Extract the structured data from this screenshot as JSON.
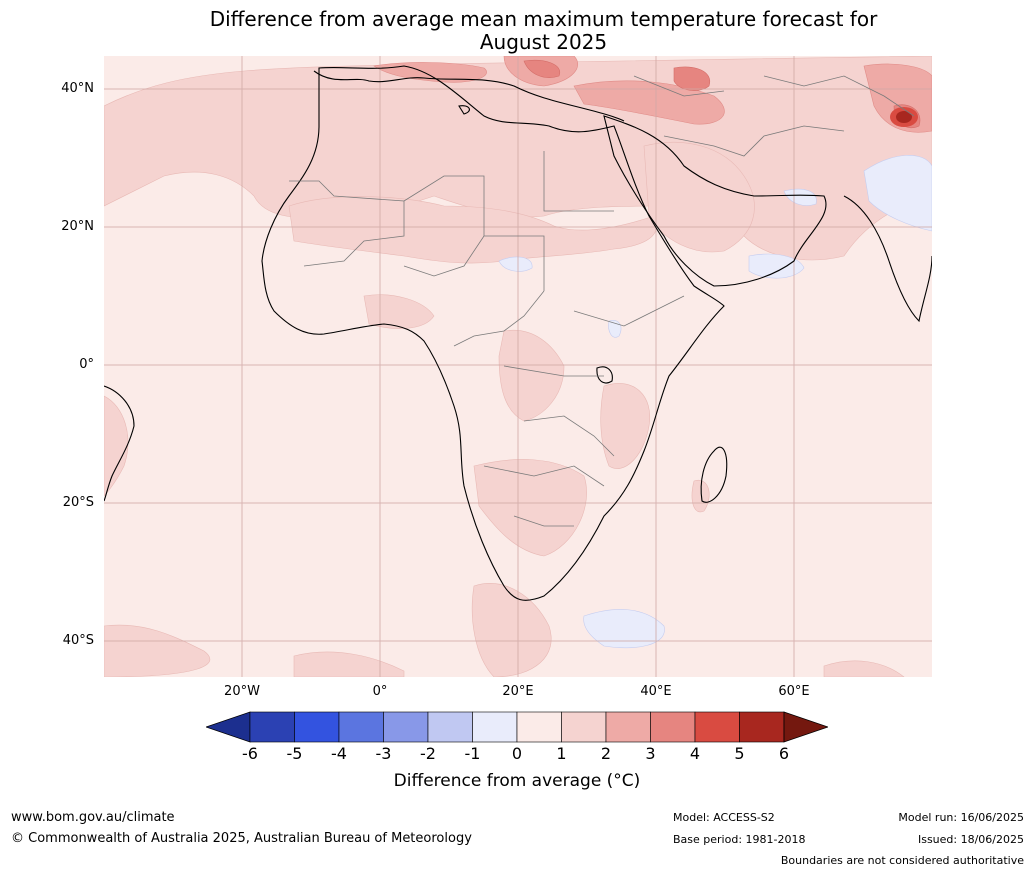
{
  "title": {
    "line1": "Difference from average mean maximum temperature forecast for",
    "line2": "August 2025"
  },
  "axes": {
    "y_labels": [
      "40°N",
      "20°N",
      "0°",
      "20°S",
      "40°S"
    ],
    "x_labels": [
      "20°W",
      "0°",
      "20°E",
      "40°E",
      "60°E"
    ]
  },
  "colorbar": {
    "title": "Difference from average (°C)",
    "ticks": [
      "-6",
      "-5",
      "-4",
      "-3",
      "-2",
      "-1",
      "0",
      "1",
      "2",
      "3",
      "4",
      "5",
      "6"
    ],
    "colors": [
      "#1c2f8f",
      "#2b41b3",
      "#3353e0",
      "#5b75e0",
      "#8898e8",
      "#c0c8f2",
      "#e9ecfb",
      "#fbebe8",
      "#f5d3d0",
      "#eeaaa6",
      "#e68580",
      "#d94b41",
      "#a8271f",
      "#74180f"
    ]
  },
  "footer": {
    "website": "www.bom.gov.au/climate",
    "copyright": "© Commonwealth of Australia 2025, Australian Bureau of Meteorology",
    "model": "Model: ACCESS-S2",
    "base_period": "Base period: 1981-2018",
    "model_run": "Model run: 16/06/2025",
    "issued": "Issued: 18/06/2025",
    "disclaimer": "Boundaries are not considered authoritative"
  },
  "map_colors": {
    "ocean": "#fbebe8",
    "land": "#fbebe8",
    "warm1": "#f5d3d0",
    "warm2": "#eeaaa6",
    "warm3": "#e68580",
    "hot": "#a8271f",
    "cool1": "#e9ecfb",
    "grid": "#d9b3b0",
    "coast": "#000000",
    "border": "#808080"
  }
}
